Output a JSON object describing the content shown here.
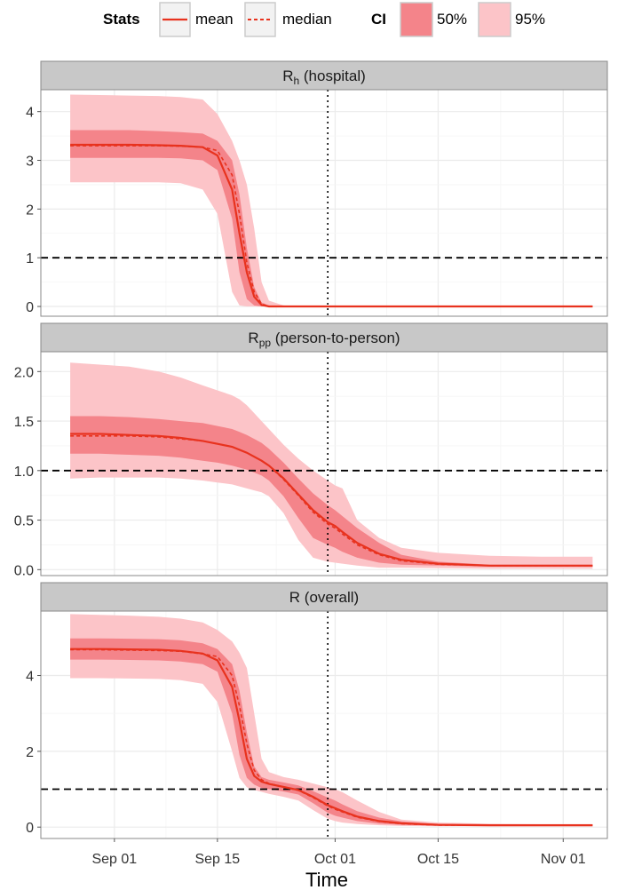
{
  "chart_data": {
    "type": "line",
    "xlabel": "Time",
    "x_ticks": [
      "Sep 01",
      "Sep 15",
      "Oct 01",
      "Oct 15",
      "Nov 01"
    ],
    "x_tick_dates": [
      "2014-09-01",
      "2014-09-15",
      "2014-10-01",
      "2014-10-15",
      "2014-11-01"
    ],
    "xlim": [
      "2014-08-22",
      "2014-11-07"
    ],
    "dates": [
      "2014-08-26",
      "2014-08-30",
      "2014-09-03",
      "2014-09-07",
      "2014-09-10",
      "2014-09-13",
      "2014-09-15",
      "2014-09-17",
      "2014-09-18",
      "2014-09-19",
      "2014-09-20",
      "2014-09-21",
      "2014-09-22",
      "2014-09-24",
      "2014-09-26",
      "2014-09-28",
      "2014-09-30",
      "2014-10-01",
      "2014-10-02",
      "2014-10-04",
      "2014-10-07",
      "2014-10-10",
      "2014-10-15",
      "2014-10-22",
      "2014-10-29",
      "2014-11-05"
    ],
    "vline_date": "2014-09-30",
    "hline_value": 1,
    "grid": true,
    "colors": {
      "line": "#e8321e",
      "band50": "#f4848a",
      "band95": "#fcc4c8",
      "strip": "#c8c8c8",
      "panel_border": "#8a8a8a",
      "grid": "#ebebeb"
    },
    "legend": {
      "position": "top",
      "stats_title": "Stats",
      "mean_label": "mean",
      "median_label": "median",
      "ci_title": "CI",
      "ci50_label": "50%",
      "ci95_label": "95%"
    },
    "panels": [
      {
        "title": "R",
        "subscript": "h",
        "suffix": " (hospital)",
        "ylim": [
          -0.2,
          4.45
        ],
        "yticks": [
          0,
          1,
          2,
          3,
          4
        ],
        "ytick_labels": [
          "0",
          "1",
          "2",
          "3",
          "4"
        ],
        "mean": [
          3.32,
          3.32,
          3.32,
          3.31,
          3.3,
          3.27,
          3.1,
          2.4,
          1.5,
          0.7,
          0.2,
          0.03,
          0.0,
          0,
          0,
          0,
          0,
          0,
          0,
          0,
          0,
          0,
          0,
          0,
          0,
          0
        ],
        "median": [
          3.3,
          3.3,
          3.3,
          3.3,
          3.29,
          3.27,
          3.2,
          2.7,
          1.9,
          0.9,
          0.3,
          0.05,
          0.0,
          0,
          0,
          0,
          0,
          0,
          0,
          0,
          0,
          0,
          0,
          0,
          0,
          0
        ],
        "lo50": [
          3.05,
          3.05,
          3.05,
          3.05,
          3.04,
          3.0,
          2.8,
          1.8,
          0.7,
          0.15,
          0.02,
          0,
          0,
          0,
          0,
          0,
          0,
          0,
          0,
          0,
          0,
          0,
          0,
          0,
          0,
          0
        ],
        "hi50": [
          3.62,
          3.62,
          3.62,
          3.6,
          3.58,
          3.55,
          3.4,
          3.0,
          2.3,
          1.2,
          0.4,
          0.08,
          0.02,
          0,
          0,
          0,
          0,
          0,
          0,
          0,
          0,
          0,
          0,
          0,
          0,
          0
        ],
        "lo95": [
          2.55,
          2.55,
          2.55,
          2.55,
          2.53,
          2.4,
          1.9,
          0.3,
          0.02,
          0,
          0,
          0,
          0,
          0,
          0,
          0,
          0,
          0,
          0,
          0,
          0,
          0,
          0,
          0,
          0,
          0
        ],
        "hi95": [
          4.35,
          4.34,
          4.33,
          4.32,
          4.3,
          4.25,
          3.95,
          3.4,
          3.0,
          2.5,
          1.6,
          0.5,
          0.12,
          0.02,
          0,
          0,
          0,
          0,
          0,
          0,
          0,
          0,
          0,
          0,
          0,
          0
        ]
      },
      {
        "title": "R",
        "subscript": "pp",
        "suffix": " (person-to-person)",
        "ylim": [
          -0.06,
          2.2
        ],
        "yticks": [
          0,
          0.5,
          1,
          1.5,
          2
        ],
        "ytick_labels": [
          "0.0",
          "0.5",
          "1.0",
          "1.5",
          "2.0"
        ],
        "mean": [
          1.37,
          1.37,
          1.36,
          1.35,
          1.33,
          1.3,
          1.27,
          1.24,
          1.21,
          1.18,
          1.14,
          1.1,
          1.05,
          0.92,
          0.76,
          0.6,
          0.48,
          0.44,
          0.38,
          0.27,
          0.16,
          0.1,
          0.06,
          0.04,
          0.04,
          0.04
        ],
        "median": [
          1.35,
          1.35,
          1.35,
          1.34,
          1.32,
          1.3,
          1.27,
          1.24,
          1.21,
          1.18,
          1.14,
          1.1,
          1.05,
          0.91,
          0.75,
          0.58,
          0.46,
          0.42,
          0.36,
          0.25,
          0.15,
          0.09,
          0.055,
          0.04,
          0.04,
          0.04
        ],
        "lo50": [
          1.17,
          1.17,
          1.16,
          1.15,
          1.13,
          1.1,
          1.08,
          1.05,
          1.03,
          1.01,
          0.98,
          0.95,
          0.9,
          0.74,
          0.52,
          0.32,
          0.25,
          0.22,
          0.18,
          0.12,
          0.07,
          0.05,
          0.04,
          0.03,
          0.03,
          0.03
        ],
        "hi50": [
          1.55,
          1.55,
          1.54,
          1.52,
          1.5,
          1.48,
          1.45,
          1.42,
          1.39,
          1.36,
          1.32,
          1.28,
          1.22,
          1.08,
          0.92,
          0.77,
          0.65,
          0.6,
          0.54,
          0.42,
          0.27,
          0.15,
          0.08,
          0.05,
          0.05,
          0.05
        ],
        "lo95": [
          0.92,
          0.93,
          0.93,
          0.93,
          0.92,
          0.9,
          0.88,
          0.86,
          0.84,
          0.82,
          0.8,
          0.78,
          0.74,
          0.57,
          0.3,
          0.12,
          0.08,
          0.07,
          0.06,
          0.04,
          0.02,
          0.02,
          0.015,
          0.01,
          0.01,
          0.01
        ],
        "hi95": [
          2.09,
          2.07,
          2.05,
          2.0,
          1.94,
          1.86,
          1.81,
          1.76,
          1.72,
          1.66,
          1.58,
          1.5,
          1.42,
          1.26,
          1.12,
          1.0,
          0.9,
          0.85,
          0.82,
          0.5,
          0.32,
          0.22,
          0.17,
          0.14,
          0.13,
          0.13
        ]
      },
      {
        "title": "R",
        "subscript": "",
        "suffix": " (overall)",
        "ylim": [
          -0.3,
          5.7
        ],
        "yticks": [
          0,
          2,
          4
        ],
        "ytick_labels": [
          "0",
          "2",
          "4"
        ],
        "mean": [
          4.7,
          4.7,
          4.69,
          4.68,
          4.65,
          4.58,
          4.4,
          3.7,
          2.8,
          1.8,
          1.35,
          1.2,
          1.14,
          1.06,
          0.98,
          0.8,
          0.58,
          0.5,
          0.42,
          0.28,
          0.16,
          0.1,
          0.06,
          0.05,
          0.05,
          0.05
        ],
        "median": [
          4.68,
          4.68,
          4.67,
          4.66,
          4.64,
          4.57,
          4.5,
          4.0,
          3.2,
          2.2,
          1.5,
          1.25,
          1.15,
          1.06,
          0.97,
          0.78,
          0.56,
          0.47,
          0.4,
          0.26,
          0.15,
          0.09,
          0.055,
          0.05,
          0.05,
          0.05
        ],
        "lo50": [
          4.42,
          4.42,
          4.41,
          4.4,
          4.37,
          4.3,
          4.1,
          3.0,
          1.9,
          1.3,
          1.12,
          1.03,
          1.0,
          0.94,
          0.86,
          0.63,
          0.38,
          0.3,
          0.25,
          0.16,
          0.09,
          0.06,
          0.04,
          0.04,
          0.04,
          0.04
        ],
        "hi50": [
          4.98,
          4.98,
          4.97,
          4.96,
          4.93,
          4.85,
          4.7,
          4.3,
          3.6,
          2.5,
          1.6,
          1.32,
          1.25,
          1.18,
          1.1,
          0.95,
          0.78,
          0.7,
          0.6,
          0.42,
          0.25,
          0.15,
          0.08,
          0.06,
          0.06,
          0.06
        ],
        "lo95": [
          3.93,
          3.93,
          3.92,
          3.91,
          3.88,
          3.78,
          3.3,
          2.0,
          1.3,
          1.05,
          0.98,
          0.93,
          0.88,
          0.8,
          0.7,
          0.45,
          0.22,
          0.16,
          0.12,
          0.08,
          0.05,
          0.03,
          0.02,
          0.02,
          0.02,
          0.02
        ],
        "hi95": [
          5.62,
          5.6,
          5.58,
          5.55,
          5.5,
          5.4,
          5.2,
          4.9,
          4.6,
          4.2,
          3.0,
          1.8,
          1.45,
          1.32,
          1.25,
          1.15,
          1.05,
          1.0,
          0.92,
          0.7,
          0.4,
          0.2,
          0.12,
          0.09,
          0.08,
          0.08
        ]
      }
    ]
  }
}
